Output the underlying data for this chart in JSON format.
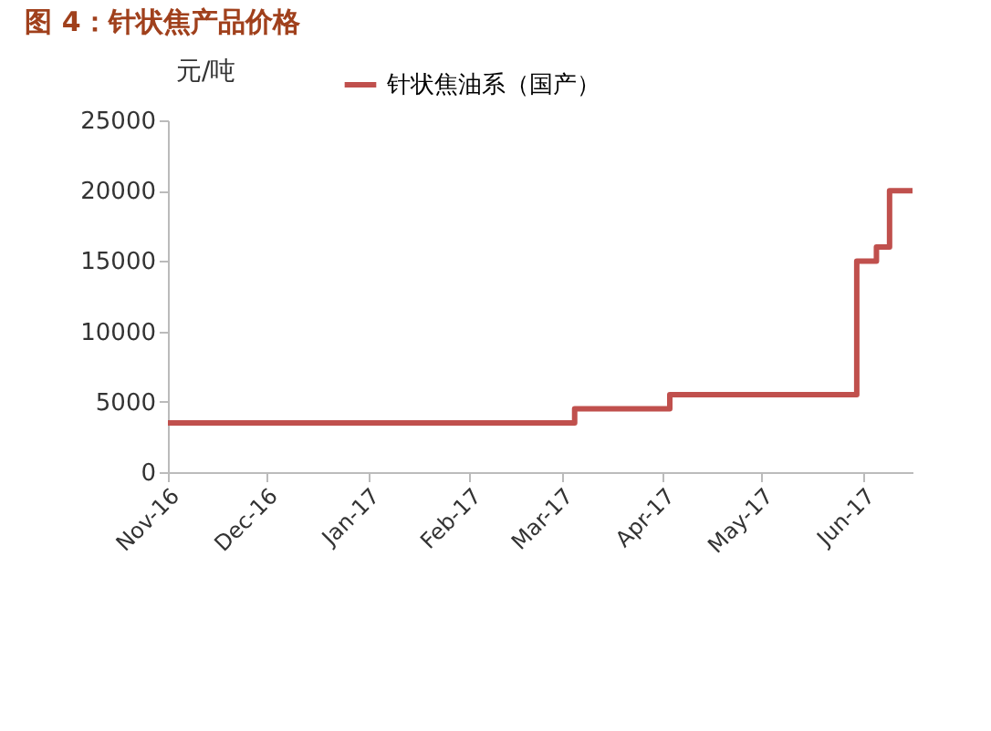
{
  "chart_data": {
    "type": "step",
    "title": "图 4：针状焦产品价格",
    "ylabel": "元/吨",
    "x": [
      "2016-11-01",
      "2017-03-05",
      "2017-04-03",
      "2017-05-30",
      "2017-06-05",
      "2017-06-09",
      "2017-06-16"
    ],
    "series": [
      {
        "name": "针状焦油系（国产）",
        "color": "#c0504d",
        "values": [
          3500,
          4500,
          5500,
          15000,
          16000,
          20000,
          20000
        ]
      }
    ],
    "xlim": [
      "2016-11-01",
      "2017-06-16"
    ],
    "xticks": [
      {
        "value": "2016-11-01",
        "label": "Nov-16"
      },
      {
        "value": "2016-12-01",
        "label": "Dec-16"
      },
      {
        "value": "2017-01-01",
        "label": "Jan-17"
      },
      {
        "value": "2017-02-01",
        "label": "Feb-17"
      },
      {
        "value": "2017-03-01",
        "label": "Mar-17"
      },
      {
        "value": "2017-04-01",
        "label": "Apr-17"
      },
      {
        "value": "2017-05-01",
        "label": "May-17"
      },
      {
        "value": "2017-06-01",
        "label": "Jun-17"
      }
    ],
    "ylim": [
      0,
      25000
    ],
    "yticks": [
      0,
      5000,
      10000,
      15000,
      20000,
      25000
    ],
    "grid": false,
    "legend": "top"
  }
}
